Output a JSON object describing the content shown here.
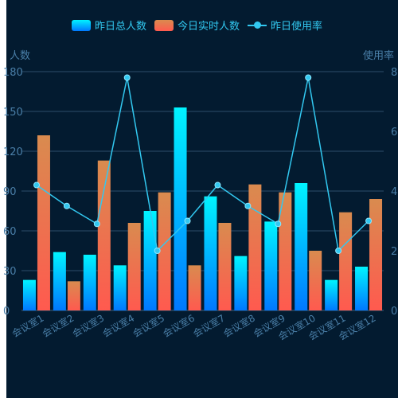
{
  "chart_data": {
    "type": "bar",
    "categories": [
      "会议室1",
      "会议室2",
      "会议室3",
      "会议室4",
      "会议室5",
      "会议室6",
      "会议室7",
      "会议室8",
      "会议室9",
      "会议室10",
      "会议室11",
      "会议室12"
    ],
    "series": [
      {
        "name": "昨日总人数",
        "type": "bar",
        "axis": "left",
        "values": [
          23,
          44,
          42,
          34,
          75,
          153,
          86,
          41,
          67,
          96,
          23,
          33
        ]
      },
      {
        "name": "今日实时人数",
        "type": "bar",
        "axis": "left",
        "values": [
          132,
          22,
          113,
          66,
          89,
          34,
          66,
          95,
          89,
          45,
          74,
          84
        ]
      },
      {
        "name": "昨日使用率",
        "type": "line",
        "axis": "right",
        "values": [
          4.2,
          3.5,
          2.9,
          7.8,
          2.0,
          3.0,
          4.2,
          3.5,
          2.9,
          7.8,
          2.0,
          3.0
        ]
      }
    ],
    "left_axis": {
      "label": "人数",
      "ticks": [
        "0",
        "30",
        "60",
        "90",
        "120",
        "150",
        "180"
      ],
      "range": [
        0,
        180
      ]
    },
    "right_axis": {
      "label": "使用率",
      "ticks": [
        "0",
        "2",
        "4",
        "6",
        "8"
      ],
      "range": [
        0,
        8
      ]
    },
    "legend_position": "top",
    "grid": true,
    "colors": {
      "background": "#031b30",
      "grid": "#2d4e6a",
      "axis_text": "#4a7fa8",
      "legend_text": "#32c8f0",
      "line": "#32c8f0",
      "bar1_top": "#00f4ff",
      "bar1_bottom": "#0078ff",
      "bar2_top": "#d98b4f",
      "bar2_bottom": "#ff5a4f"
    }
  }
}
